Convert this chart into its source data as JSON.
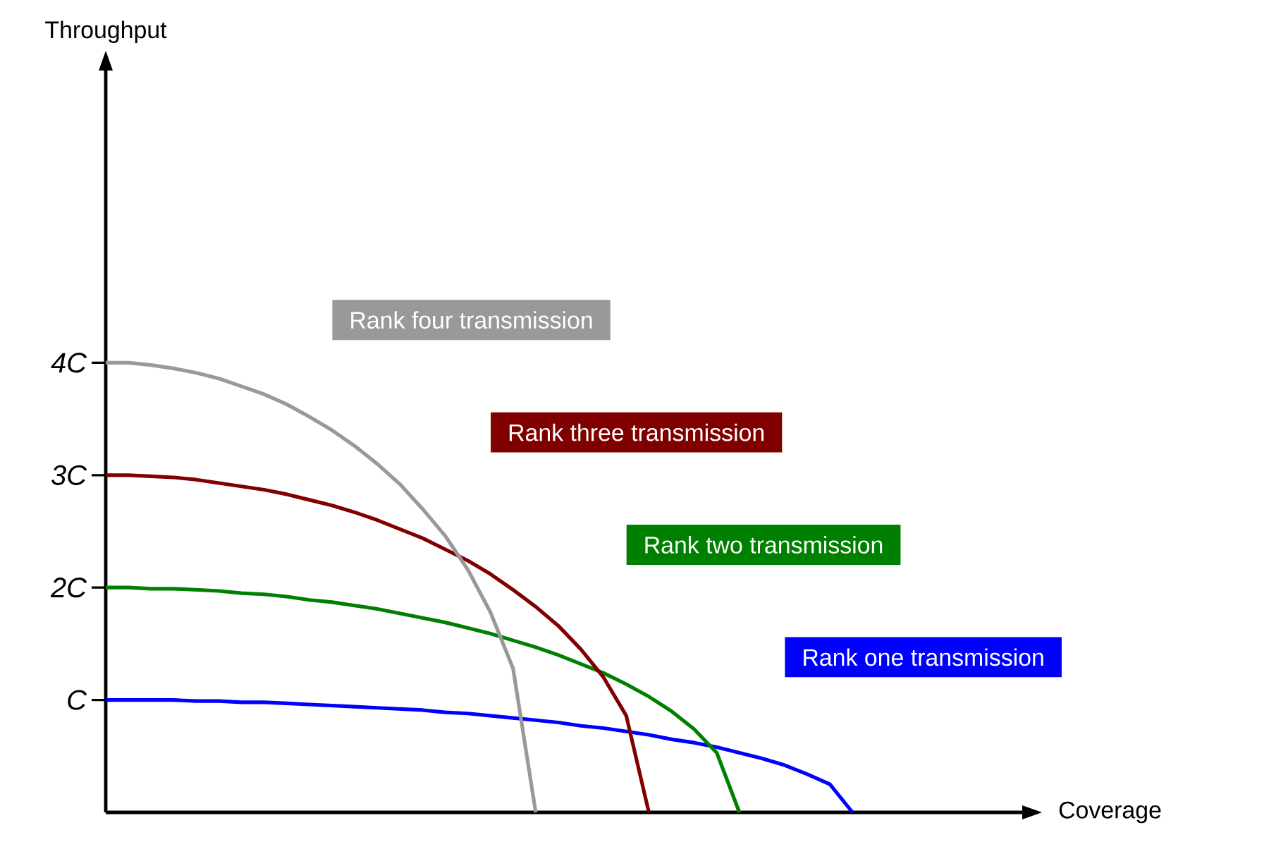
{
  "chart_data": {
    "type": "line",
    "xlabel": "Coverage",
    "ylabel": "Throughput",
    "categories": [
      null,
      null,
      null,
      null,
      null,
      null,
      null,
      null,
      null,
      null,
      null,
      null,
      null,
      null,
      null,
      null,
      null,
      null,
      null,
      null,
      null,
      null,
      null,
      null,
      null,
      null,
      null,
      null,
      null,
      null,
      null,
      null,
      null,
      null,
      null,
      null,
      null,
      null,
      null,
      null,
      null
    ],
    "ylim": [
      0,
      6.6
    ],
    "yticks": [
      {
        "value": 1,
        "label": "C"
      },
      {
        "value": 2,
        "label": "2C"
      },
      {
        "value": 3,
        "label": "3C"
      },
      {
        "value": 4,
        "label": "4C"
      }
    ],
    "tick_labels": "y",
    "grid": false,
    "marker": "none",
    "line_style": "solid",
    "series": [
      {
        "name": "Rank one transmission",
        "color": "#0000ff",
        "values": [
          1,
          1,
          1,
          1,
          0.99,
          0.99,
          0.98,
          0.98,
          0.97,
          0.96,
          0.95,
          0.94,
          0.93,
          0.92,
          0.91,
          0.89,
          0.88,
          0.86,
          0.84,
          0.82,
          0.8,
          0.77,
          0.75,
          0.72,
          0.69,
          0.65,
          0.62,
          0.58,
          0.53,
          0.48,
          0.42,
          0.34,
          0.25,
          0,
          null,
          null,
          null,
          null,
          null,
          null,
          null
        ]
      },
      {
        "name": "Rank two transmission",
        "color": "#008000",
        "values": [
          2,
          2,
          1.99,
          1.99,
          1.98,
          1.97,
          1.95,
          1.94,
          1.92,
          1.89,
          1.87,
          1.84,
          1.81,
          1.77,
          1.73,
          1.69,
          1.64,
          1.59,
          1.53,
          1.47,
          1.4,
          1.32,
          1.24,
          1.14,
          1.03,
          0.9,
          0.74,
          0.53,
          0,
          null,
          null,
          null,
          null,
          null,
          null,
          null,
          null,
          null,
          null,
          null,
          null
        ]
      },
      {
        "name": "Rank three transmission",
        "color": "#800000",
        "values": [
          3,
          3,
          2.99,
          2.98,
          2.96,
          2.93,
          2.9,
          2.87,
          2.83,
          2.78,
          2.73,
          2.67,
          2.6,
          2.52,
          2.44,
          2.34,
          2.24,
          2.12,
          1.98,
          1.83,
          1.66,
          1.45,
          1.2,
          0.86,
          0,
          null,
          null,
          null,
          null,
          null,
          null,
          null,
          null,
          null,
          null,
          null,
          null,
          null,
          null,
          null,
          null
        ]
      },
      {
        "name": "Rank four transmission",
        "color": "#999999",
        "values": [
          4,
          4,
          3.98,
          3.95,
          3.91,
          3.86,
          3.79,
          3.72,
          3.63,
          3.52,
          3.4,
          3.26,
          3.1,
          2.92,
          2.7,
          2.46,
          2.16,
          1.78,
          1.28,
          0,
          null,
          null,
          null,
          null,
          null,
          null,
          null,
          null,
          null,
          null,
          null,
          null,
          null,
          null,
          null,
          null,
          null,
          null,
          null,
          null,
          null
        ]
      }
    ]
  }
}
